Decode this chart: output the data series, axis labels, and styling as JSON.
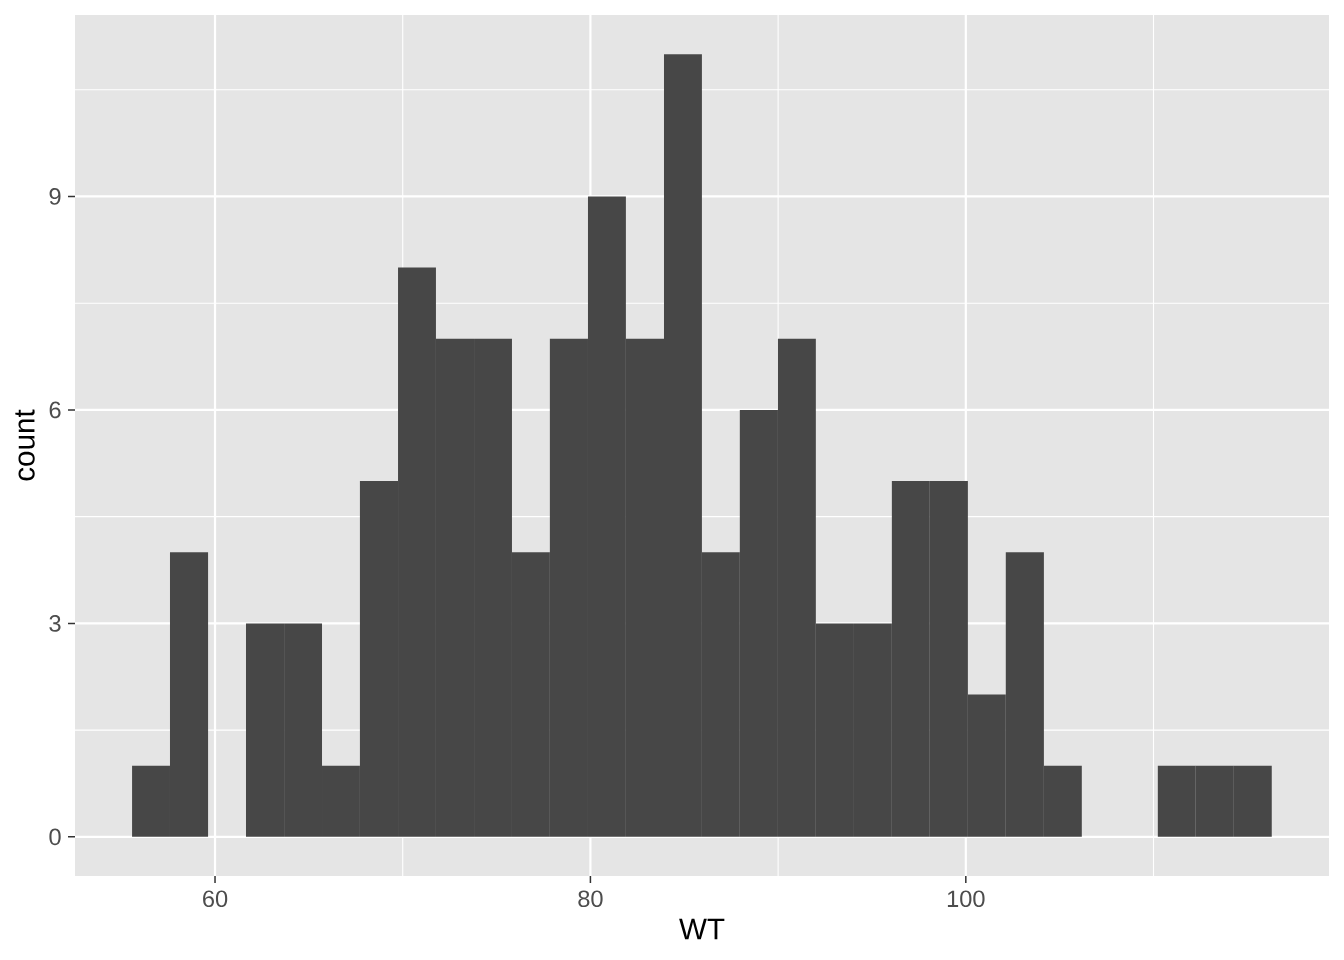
{
  "chart_data": {
    "type": "histogram",
    "xlabel": "WT",
    "ylabel": "count",
    "bins": [
      55.58,
      57.6,
      59.63,
      61.65,
      63.68,
      65.7,
      67.72,
      69.75,
      71.77,
      73.8,
      75.82,
      77.84,
      79.87,
      81.89,
      83.92,
      85.94,
      87.96,
      89.99,
      92.01,
      94.04,
      96.06,
      98.08,
      100.11,
      102.13,
      104.16,
      106.18,
      108.2,
      110.23,
      112.25,
      114.28,
      116.3
    ],
    "values": [
      1,
      4,
      0,
      3,
      3,
      1,
      5,
      8,
      7,
      7,
      4,
      7,
      9,
      7,
      11,
      4,
      6,
      7,
      3,
      3,
      5,
      5,
      2,
      4,
      1,
      0,
      0,
      1,
      1,
      1
    ],
    "color": "#474747",
    "xlim": [
      52.54,
      119.35
    ],
    "ylim": [
      -0.55,
      11.55
    ],
    "xticks": [
      60,
      80,
      100,
      {
        "value": 70,
        "label": null
      },
      {
        "value": 90,
        "label": null
      },
      {
        "value": 110,
        "label": null
      }
    ],
    "yticks": [
      0,
      3,
      6,
      9,
      {
        "value": 1.5,
        "label": null
      },
      {
        "value": 4.5,
        "label": null
      },
      {
        "value": 7.5,
        "label": null
      },
      {
        "value": 10.5,
        "label": null
      }
    ],
    "grid": true
  }
}
